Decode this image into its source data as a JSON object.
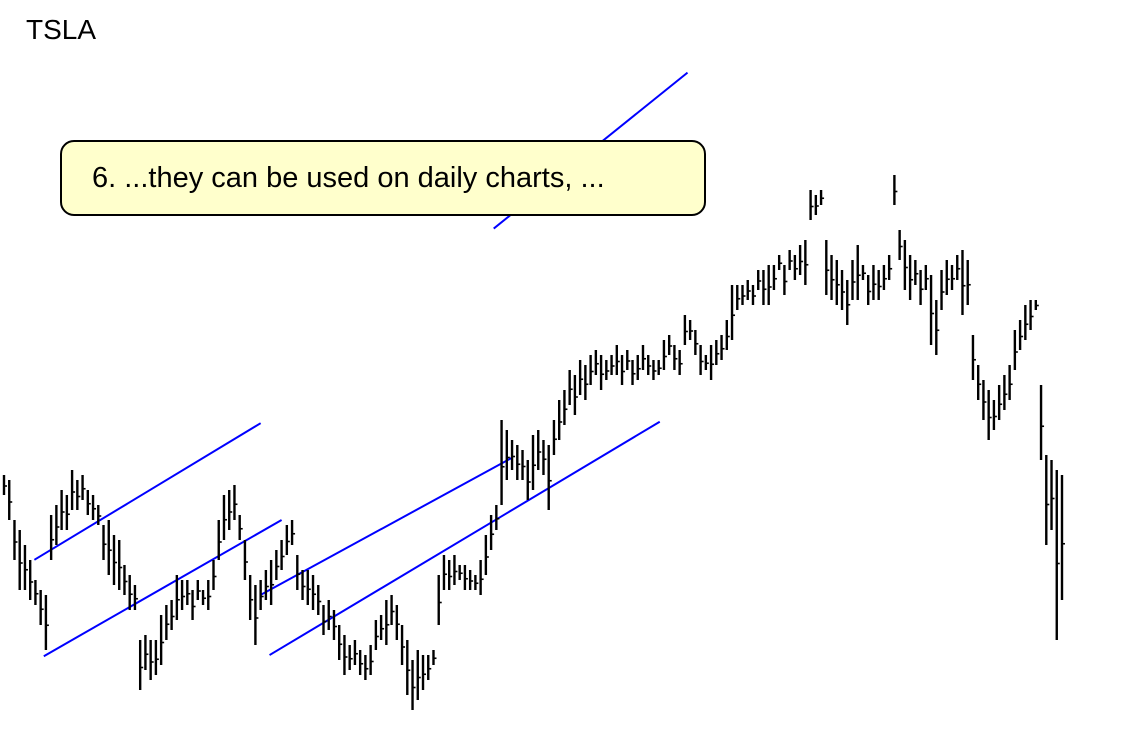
{
  "ticker": "TSLA",
  "annotation": "6.  ...they can be used on daily charts, ...",
  "colors": {
    "bars": "#000000",
    "channel_lines": "#0000ff",
    "callout_fill": "#ffffcc"
  },
  "chart_data": {
    "type": "bar",
    "title": "TSLA",
    "bars": [
      [
        475,
        495
      ],
      [
        480,
        520
      ],
      [
        520,
        560
      ],
      [
        530,
        590
      ],
      [
        545,
        590
      ],
      [
        560,
        600
      ],
      [
        580,
        605
      ],
      [
        590,
        625
      ],
      [
        595,
        650
      ],
      [
        515,
        560
      ],
      [
        505,
        545
      ],
      [
        490,
        530
      ],
      [
        495,
        530
      ],
      [
        470,
        510
      ],
      [
        480,
        510
      ],
      [
        475,
        500
      ],
      [
        490,
        515
      ],
      [
        495,
        520
      ],
      [
        505,
        525
      ],
      [
        525,
        560
      ],
      [
        520,
        575
      ],
      [
        535,
        585
      ],
      [
        540,
        590
      ],
      [
        565,
        595
      ],
      [
        575,
        610
      ],
      [
        585,
        610
      ],
      [
        640,
        690
      ],
      [
        635,
        670
      ],
      [
        640,
        680
      ],
      [
        640,
        675
      ],
      [
        615,
        665
      ],
      [
        605,
        640
      ],
      [
        600,
        630
      ],
      [
        575,
        620
      ],
      [
        580,
        610
      ],
      [
        580,
        605
      ],
      [
        590,
        620
      ],
      [
        580,
        600
      ],
      [
        590,
        605
      ],
      [
        580,
        610
      ],
      [
        560,
        590
      ],
      [
        520,
        560
      ],
      [
        495,
        540
      ],
      [
        490,
        530
      ],
      [
        485,
        520
      ],
      [
        515,
        540
      ],
      [
        540,
        580
      ],
      [
        575,
        620
      ],
      [
        585,
        645
      ],
      [
        580,
        610
      ],
      [
        570,
        600
      ],
      [
        560,
        605
      ],
      [
        550,
        580
      ],
      [
        540,
        570
      ],
      [
        525,
        555
      ],
      [
        520,
        545
      ],
      [
        555,
        590
      ],
      [
        570,
        600
      ],
      [
        570,
        605
      ],
      [
        575,
        610
      ],
      [
        585,
        615
      ],
      [
        605,
        635
      ],
      [
        600,
        630
      ],
      [
        610,
        640
      ],
      [
        625,
        660
      ],
      [
        635,
        675
      ],
      [
        645,
        670
      ],
      [
        640,
        665
      ],
      [
        650,
        675
      ],
      [
        655,
        680
      ],
      [
        645,
        675
      ],
      [
        620,
        650
      ],
      [
        615,
        640
      ],
      [
        600,
        645
      ],
      [
        595,
        625
      ],
      [
        605,
        640
      ],
      [
        625,
        665
      ],
      [
        640,
        695
      ],
      [
        660,
        710
      ],
      [
        650,
        700
      ],
      [
        655,
        690
      ],
      [
        655,
        680
      ],
      [
        650,
        665
      ],
      [
        575,
        625
      ],
      [
        555,
        590
      ],
      [
        560,
        590
      ],
      [
        555,
        585
      ],
      [
        565,
        580
      ],
      [
        565,
        590
      ],
      [
        570,
        590
      ],
      [
        575,
        590
      ],
      [
        560,
        595
      ],
      [
        535,
        575
      ],
      [
        515,
        550
      ],
      [
        505,
        530
      ],
      [
        420,
        505
      ],
      [
        430,
        480
      ],
      [
        440,
        470
      ],
      [
        445,
        480
      ],
      [
        450,
        480
      ],
      [
        460,
        500
      ],
      [
        435,
        490
      ],
      [
        430,
        470
      ],
      [
        440,
        475
      ],
      [
        445,
        510
      ],
      [
        420,
        455
      ],
      [
        400,
        440
      ],
      [
        390,
        425
      ],
      [
        370,
        405
      ],
      [
        375,
        415
      ],
      [
        360,
        395
      ],
      [
        365,
        400
      ],
      [
        355,
        385
      ],
      [
        350,
        375
      ],
      [
        355,
        390
      ],
      [
        360,
        380
      ],
      [
        355,
        375
      ],
      [
        345,
        375
      ],
      [
        355,
        385
      ],
      [
        350,
        370
      ],
      [
        360,
        385
      ],
      [
        355,
        380
      ],
      [
        345,
        370
      ],
      [
        355,
        375
      ],
      [
        360,
        380
      ],
      [
        360,
        375
      ],
      [
        340,
        370
      ],
      [
        335,
        355
      ],
      [
        345,
        370
      ],
      [
        350,
        375
      ],
      [
        315,
        345
      ],
      [
        320,
        340
      ],
      [
        330,
        355
      ],
      [
        345,
        375
      ],
      [
        355,
        370
      ],
      [
        345,
        380
      ],
      [
        340,
        365
      ],
      [
        335,
        360
      ],
      [
        320,
        350
      ],
      [
        285,
        340
      ],
      [
        285,
        310
      ],
      [
        285,
        305
      ],
      [
        280,
        300
      ],
      [
        285,
        305
      ],
      [
        270,
        290
      ],
      [
        270,
        305
      ],
      [
        265,
        305
      ],
      [
        265,
        290
      ],
      [
        255,
        270
      ],
      [
        265,
        295
      ],
      [
        250,
        270
      ],
      [
        255,
        280
      ],
      [
        245,
        275
      ],
      [
        240,
        285
      ],
      [
        190,
        220
      ],
      [
        195,
        215
      ],
      [
        190,
        205
      ],
      [
        240,
        295
      ],
      [
        255,
        300
      ],
      [
        260,
        305
      ],
      [
        270,
        310
      ],
      [
        280,
        325
      ],
      [
        260,
        300
      ],
      [
        245,
        300
      ],
      [
        265,
        280
      ],
      [
        275,
        305
      ],
      [
        265,
        300
      ],
      [
        270,
        300
      ],
      [
        265,
        290
      ],
      [
        255,
        280
      ],
      [
        175,
        205
      ],
      [
        230,
        260
      ],
      [
        240,
        290
      ],
      [
        255,
        300
      ],
      [
        260,
        285
      ],
      [
        270,
        305
      ],
      [
        265,
        290
      ],
      [
        275,
        345
      ],
      [
        300,
        355
      ],
      [
        270,
        310
      ],
      [
        260,
        295
      ],
      [
        265,
        290
      ],
      [
        255,
        280
      ],
      [
        250,
        315
      ],
      [
        260,
        305
      ],
      [
        335,
        380
      ],
      [
        365,
        400
      ],
      [
        380,
        420
      ],
      [
        390,
        440
      ],
      [
        400,
        430
      ],
      [
        385,
        420
      ],
      [
        375,
        410
      ],
      [
        365,
        400
      ],
      [
        330,
        370
      ],
      [
        320,
        350
      ],
      [
        305,
        340
      ],
      [
        300,
        330
      ],
      [
        300,
        310
      ],
      [
        385,
        460
      ],
      [
        455,
        545
      ],
      [
        460,
        530
      ],
      [
        470,
        640
      ],
      [
        475,
        600
      ]
    ],
    "channels": [
      {
        "from": {
          "bar": 7,
          "price": 556
        },
        "to": {
          "bar": 44,
          "price": 439
        }
      },
      {
        "from": {
          "bar": 9,
          "price": 652
        },
        "to": {
          "bar": 48,
          "price": 535
        }
      },
      {
        "from": {
          "bar": 50,
          "price": 592
        },
        "to": {
          "bar": 92,
          "price": 472
        }
      },
      {
        "from": {
          "bar": 52,
          "price": 651
        },
        "to": {
          "bar": 120,
          "price": 438
        }
      },
      {
        "from": {
          "bar": 96,
          "price": 218
        },
        "to": {
          "bar": 124,
          "price": 100
        }
      }
    ],
    "xlabel": "",
    "ylabel": ""
  }
}
